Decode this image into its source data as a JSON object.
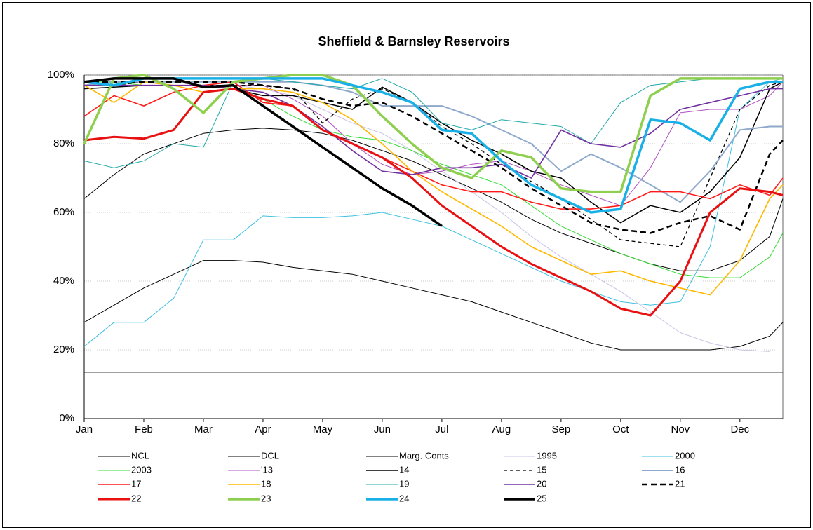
{
  "chart_data": {
    "type": "line",
    "title": "Sheffield & Barnsley Reservoirs",
    "x": [
      0,
      0.5,
      1,
      1.5,
      2,
      2.5,
      3,
      3.5,
      4,
      4.5,
      5,
      5.5,
      6,
      6.5,
      7,
      7.5,
      8,
      8.5,
      9,
      9.5,
      10,
      10.5,
      11,
      11.5,
      11.72
    ],
    "xlim": [
      0,
      11.72
    ],
    "xticks": [
      {
        "value": 0,
        "label": "Jan"
      },
      {
        "value": 1,
        "label": "Feb"
      },
      {
        "value": 2,
        "label": "Mar"
      },
      {
        "value": 3,
        "label": "Apr"
      },
      {
        "value": 4,
        "label": "May"
      },
      {
        "value": 5,
        "label": "Jun"
      },
      {
        "value": 6,
        "label": "Jul"
      },
      {
        "value": 7,
        "label": "Aug"
      },
      {
        "value": 8,
        "label": "Sep"
      },
      {
        "value": 9,
        "label": "Oct"
      },
      {
        "value": 10,
        "label": "Nov"
      },
      {
        "value": 11,
        "label": "Dec"
      }
    ],
    "ylim": [
      0,
      100
    ],
    "yticks": [
      {
        "value": 0,
        "label": "0%"
      },
      {
        "value": 20,
        "label": "20%"
      },
      {
        "value": 40,
        "label": "40%"
      },
      {
        "value": 60,
        "label": "60%"
      },
      {
        "value": 80,
        "label": "80%"
      },
      {
        "value": 100,
        "label": "100%"
      }
    ],
    "grid": true,
    "series": [
      {
        "name": "NCL",
        "color": "#000000",
        "width": 1,
        "dash": "",
        "values": [
          64,
          71,
          77,
          80,
          83,
          84,
          84.5,
          84,
          83,
          81,
          78,
          75,
          71,
          67,
          63,
          58,
          54,
          51,
          48,
          45,
          43,
          43,
          46,
          53,
          64
        ]
      },
      {
        "name": "DCL",
        "color": "#000000",
        "width": 1,
        "dash": "",
        "values": [
          28,
          33,
          38,
          42,
          46,
          46,
          45.5,
          44,
          43,
          42,
          40,
          38,
          36,
          34,
          31,
          28,
          25,
          22,
          20,
          20,
          20,
          20,
          21,
          24,
          28
        ]
      },
      {
        "name": "Marg. Conts",
        "color": "#000000",
        "width": 1,
        "dash": "",
        "values": [
          13.5,
          13.5,
          13.5,
          13.5,
          13.5,
          13.5,
          13.5,
          13.5,
          13.5,
          13.5,
          13.5,
          13.5,
          13.5,
          13.5,
          13.5,
          13.5,
          13.5,
          13.5,
          13.5,
          13.5,
          13.5,
          13.5,
          13.5,
          13.5,
          13.5
        ]
      },
      {
        "name": "1995",
        "color": "#c9c3e6",
        "width": 1,
        "dash": "",
        "values": [
          98,
          97,
          97,
          97,
          97,
          97,
          96,
          94,
          90,
          86,
          83,
          78,
          72,
          66,
          60,
          53,
          47,
          42,
          37,
          31,
          25,
          22,
          20,
          19.5,
          null
        ]
      },
      {
        "name": "2000",
        "color": "#3fc0e0",
        "width": 1,
        "dash": "",
        "values": [
          21,
          28,
          28,
          35,
          52,
          52,
          59,
          58.5,
          58.5,
          59,
          60,
          58,
          56,
          52,
          48,
          44,
          40,
          37,
          34,
          33,
          34,
          50,
          90,
          98,
          99
        ]
      },
      {
        "name": "2003",
        "color": "#33dd33",
        "width": 1,
        "dash": "",
        "values": [
          98,
          98,
          97,
          97,
          97,
          96,
          93,
          88,
          84,
          82,
          81,
          78,
          74,
          71,
          68,
          62,
          56,
          52,
          48,
          45,
          42,
          41,
          41,
          47,
          54
        ]
      },
      {
        "name": "'13",
        "color": "#b050c0",
        "width": 1,
        "dash": "",
        "values": [
          97,
          97,
          97,
          97,
          97,
          97,
          97,
          93,
          88,
          80,
          74,
          71,
          72,
          74,
          75,
          72,
          68,
          65,
          62,
          73,
          89,
          90,
          90,
          94,
          98
        ]
      },
      {
        "name": "14",
        "color": "#000000",
        "width": 1.5,
        "dash": "",
        "values": [
          96,
          96.5,
          97,
          97,
          97,
          96,
          94,
          94,
          92,
          90,
          96.5,
          92,
          86,
          81,
          77,
          72,
          70,
          63,
          57,
          62,
          60,
          66,
          76,
          96,
          98
        ]
      },
      {
        "name": "15",
        "color": "#000000",
        "width": 1.3,
        "dash": "5,4",
        "values": [
          97,
          97,
          98,
          98,
          97,
          97,
          97,
          96,
          86,
          93,
          96,
          92,
          85,
          80,
          74,
          69,
          64,
          58,
          52,
          51,
          50,
          70,
          90,
          97,
          98
        ]
      },
      {
        "name": "16",
        "color": "#8fa9cc",
        "width": 2,
        "dash": "",
        "values": [
          97,
          98,
          98,
          98,
          98,
          98,
          98,
          98,
          97,
          95,
          91,
          91,
          91,
          88,
          84,
          80,
          72,
          77,
          73,
          68,
          63,
          72,
          84,
          85,
          85
        ]
      },
      {
        "name": "17",
        "color": "#ff1a1a",
        "width": 1.6,
        "dash": "",
        "values": [
          88,
          94,
          91,
          95,
          97,
          98,
          92,
          91,
          84,
          80,
          76,
          72,
          68,
          66,
          66,
          63,
          61,
          61,
          62,
          66,
          66,
          64,
          68,
          65,
          70
        ]
      },
      {
        "name": "18",
        "color": "#ffb800",
        "width": 1.6,
        "dash": "",
        "values": [
          97,
          92,
          98,
          97,
          95,
          96,
          96,
          95,
          92,
          87,
          80,
          72,
          66,
          61,
          56,
          50,
          46,
          42,
          43,
          40,
          38,
          36,
          46,
          64,
          68
        ]
      },
      {
        "name": "19",
        "color": "#20a8a8",
        "width": 1,
        "dash": "",
        "values": [
          75,
          73,
          75,
          80,
          79,
          98,
          99,
          98,
          97,
          96,
          99,
          95,
          86,
          84,
          87,
          86,
          85,
          80,
          92,
          97,
          98,
          99,
          99,
          99,
          99
        ]
      },
      {
        "name": "20",
        "color": "#7030a0",
        "width": 1.6,
        "dash": "",
        "values": [
          97,
          97,
          97,
          97,
          97,
          96,
          95,
          91,
          85,
          78,
          72,
          71,
          73,
          73,
          74,
          70,
          84,
          80,
          79,
          83,
          90,
          92,
          94,
          96,
          96
        ]
      },
      {
        "name": "21",
        "color": "#000000",
        "width": 2.5,
        "dash": "8,5",
        "values": [
          98,
          98,
          98,
          98,
          98,
          98,
          97,
          96,
          93,
          91,
          92,
          88,
          83,
          78,
          73,
          67,
          62,
          57,
          55,
          54,
          57,
          59,
          55,
          77,
          81
        ]
      },
      {
        "name": "22",
        "color": "#e81010",
        "width": 3,
        "dash": "",
        "values": [
          81,
          82,
          81.5,
          84,
          95,
          96,
          93,
          91,
          84,
          80,
          76,
          70,
          62,
          56,
          50,
          45,
          41,
          37,
          32,
          30,
          40,
          60,
          67,
          66,
          65
        ]
      },
      {
        "name": "23",
        "color": "#8fcf4f",
        "width": 3.5,
        "dash": "",
        "values": [
          80,
          99,
          100,
          96,
          89,
          98,
          99,
          100,
          100,
          97,
          88,
          80,
          73,
          70,
          78,
          76,
          67,
          66,
          66,
          94,
          99,
          99,
          99,
          99,
          99
        ]
      },
      {
        "name": "24",
        "color": "#19b0e8",
        "width": 3.5,
        "dash": "",
        "values": [
          98,
          97,
          99,
          99,
          99,
          99,
          99,
          99,
          99,
          97,
          95,
          92,
          84,
          83,
          75,
          68,
          64,
          60,
          61,
          87,
          86,
          81,
          96,
          98,
          98
        ]
      },
      {
        "name": "25",
        "color": "#000000",
        "width": 3.5,
        "dash": "",
        "values": [
          98,
          99,
          99,
          99,
          96.5,
          97,
          91,
          85,
          79,
          73,
          67,
          62,
          56,
          null,
          null,
          null,
          null,
          null,
          null,
          null,
          null,
          null,
          null,
          null,
          null
        ]
      }
    ]
  }
}
